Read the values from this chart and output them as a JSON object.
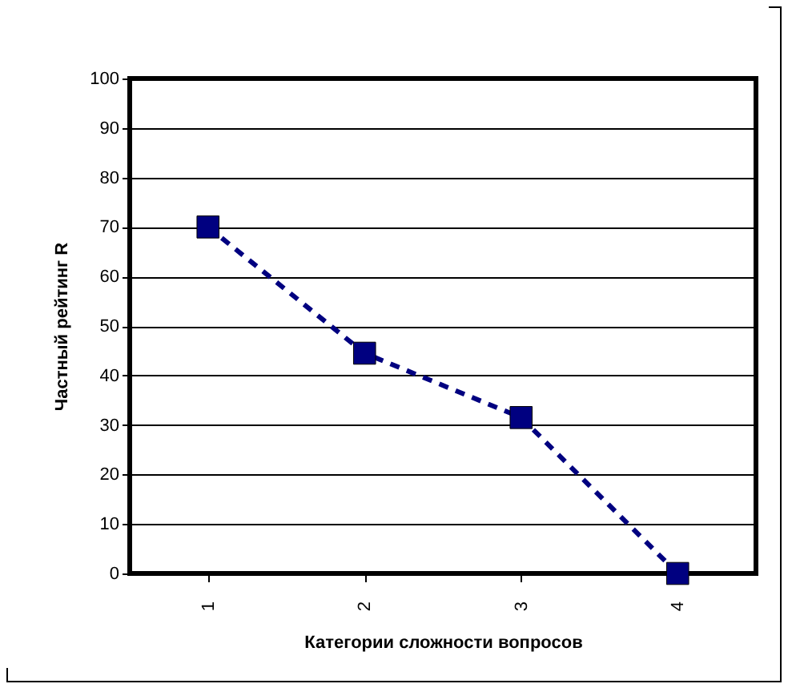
{
  "chart_data": {
    "type": "line",
    "xlabel": "Категории сложности вопросов",
    "ylabel": "Частный рейтинг R",
    "categories": [
      "1",
      "2",
      "3",
      "4"
    ],
    "series": [
      {
        "color": "#000080",
        "values": [
          70,
          44.5,
          31.5,
          0
        ]
      }
    ],
    "ylim": [
      0,
      100
    ],
    "yticks": [
      0,
      10,
      20,
      30,
      40,
      50,
      60,
      70,
      80,
      90,
      100
    ],
    "grid": "y",
    "legend": false,
    "marker": "square",
    "line_style": "dashed"
  }
}
